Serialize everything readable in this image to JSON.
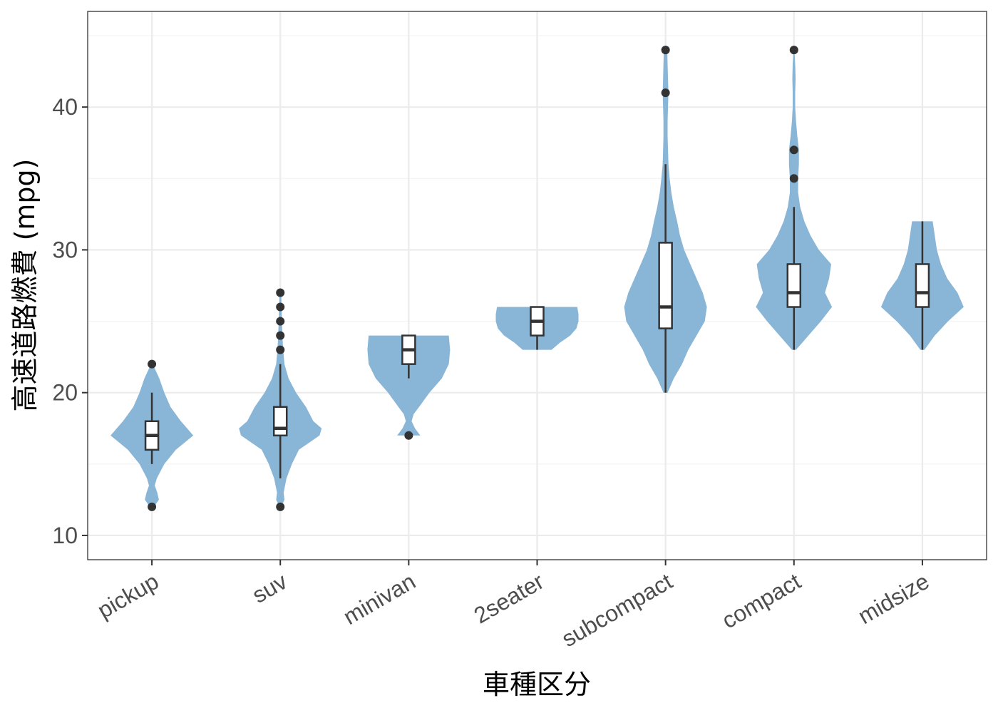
{
  "chart_data": {
    "type": "violin",
    "title": "",
    "xlabel": "車種区分",
    "ylabel": "高速道路燃費 (mpg)",
    "ylim": [
      8.3,
      46.7
    ],
    "yticks": [
      10,
      20,
      30,
      40
    ],
    "y_minor_ticks": [
      15,
      25,
      35,
      45
    ],
    "grid": true,
    "colors": {
      "violin_fill": "#89b5d6",
      "box_fill": "#ffffff",
      "box_stroke": "#333333",
      "outlier": "#333333",
      "grid_major": "#ebebeb",
      "grid_minor": "#f3f3f3",
      "panel_border": "#333333"
    },
    "categories": [
      "pickup",
      "suv",
      "minivan",
      "2seater",
      "subcompact",
      "compact",
      "midsize"
    ],
    "series": [
      {
        "category": "pickup",
        "box": {
          "q1": 16,
          "median": 17,
          "q3": 18,
          "whisker_low": 15,
          "whisker_high": 20
        },
        "outliers": [
          12,
          22
        ],
        "density_profile": [
          [
            12,
            0.05
          ],
          [
            12.5,
            0.17
          ],
          [
            13,
            0.13
          ],
          [
            13.5,
            0.07
          ],
          [
            14,
            0.12
          ],
          [
            15,
            0.3
          ],
          [
            16,
            0.58
          ],
          [
            17,
            1.0
          ],
          [
            18,
            0.7
          ],
          [
            19,
            0.45
          ],
          [
            20,
            0.3
          ],
          [
            21,
            0.18
          ],
          [
            22,
            0.02
          ]
        ]
      },
      {
        "category": "suv",
        "box": {
          "q1": 17,
          "median": 17.5,
          "q3": 19,
          "whisker_low": 14,
          "whisker_high": 22
        },
        "outliers": [
          12,
          23,
          24,
          25,
          26,
          27
        ],
        "density_profile": [
          [
            12,
            0.02
          ],
          [
            12.5,
            0.1
          ],
          [
            13,
            0.08
          ],
          [
            14,
            0.15
          ],
          [
            15,
            0.28
          ],
          [
            16,
            0.45
          ],
          [
            17,
            0.95
          ],
          [
            17.5,
            1.0
          ],
          [
            18,
            0.8
          ],
          [
            19,
            0.62
          ],
          [
            20,
            0.38
          ],
          [
            21,
            0.2
          ],
          [
            22,
            0.1
          ],
          [
            23,
            0.07
          ],
          [
            24,
            0.05
          ],
          [
            25,
            0.04
          ],
          [
            26,
            0.03
          ],
          [
            27,
            0.02
          ]
        ]
      },
      {
        "category": "minivan",
        "box": {
          "q1": 22,
          "median": 23,
          "q3": 24,
          "whisker_low": 21,
          "whisker_high": 24
        },
        "outliers": [
          17
        ],
        "density_profile": [
          [
            17,
            0.28
          ],
          [
            17.5,
            0.15
          ],
          [
            18,
            0.07
          ],
          [
            18.5,
            0.12
          ],
          [
            19,
            0.25
          ],
          [
            20,
            0.5
          ],
          [
            21,
            0.8
          ],
          [
            22,
            0.97
          ],
          [
            23,
            1.0
          ],
          [
            24,
            0.97
          ]
        ]
      },
      {
        "category": "2seater",
        "box": {
          "q1": 24,
          "median": 25,
          "q3": 26,
          "whisker_low": 23,
          "whisker_high": 26
        },
        "outliers": [],
        "density_profile": [
          [
            23,
            0.35
          ],
          [
            23.5,
            0.55
          ],
          [
            24,
            0.8
          ],
          [
            24.5,
            0.95
          ],
          [
            25,
            1.0
          ],
          [
            25.5,
            1.0
          ],
          [
            26,
            0.97
          ]
        ]
      },
      {
        "category": "subcompact",
        "box": {
          "q1": 24.5,
          "median": 26,
          "q3": 30.5,
          "whisker_low": 20,
          "whisker_high": 36
        },
        "outliers": [
          41,
          44
        ],
        "density_profile": [
          [
            20,
            0.05
          ],
          [
            21,
            0.2
          ],
          [
            22,
            0.4
          ],
          [
            23,
            0.55
          ],
          [
            24,
            0.75
          ],
          [
            25,
            0.95
          ],
          [
            26,
            1.0
          ],
          [
            27,
            0.9
          ],
          [
            28,
            0.75
          ],
          [
            29,
            0.6
          ],
          [
            30,
            0.45
          ],
          [
            31,
            0.35
          ],
          [
            32,
            0.28
          ],
          [
            33,
            0.2
          ],
          [
            34,
            0.14
          ],
          [
            35,
            0.1
          ],
          [
            36,
            0.07
          ],
          [
            37,
            0.06
          ],
          [
            38,
            0.05
          ],
          [
            39,
            0.05
          ],
          [
            40,
            0.06
          ],
          [
            41,
            0.07
          ],
          [
            42,
            0.06
          ],
          [
            43,
            0.05
          ],
          [
            44,
            0.04
          ]
        ]
      },
      {
        "category": "compact",
        "box": {
          "q1": 26,
          "median": 27,
          "q3": 29,
          "whisker_low": 23,
          "whisker_high": 33
        },
        "outliers": [
          35,
          37,
          44
        ],
        "density_profile": [
          [
            23,
            0.05
          ],
          [
            24,
            0.35
          ],
          [
            25,
            0.65
          ],
          [
            26,
            0.92
          ],
          [
            27,
            0.75
          ],
          [
            28,
            0.85
          ],
          [
            29,
            0.9
          ],
          [
            30,
            0.6
          ],
          [
            31,
            0.4
          ],
          [
            32,
            0.25
          ],
          [
            33,
            0.15
          ],
          [
            34,
            0.1
          ],
          [
            35,
            0.1
          ],
          [
            36,
            0.12
          ],
          [
            37,
            0.12
          ],
          [
            38,
            0.08
          ],
          [
            39,
            0.05
          ],
          [
            40,
            0.03
          ],
          [
            41,
            0.03
          ],
          [
            42,
            0.04
          ],
          [
            43,
            0.03
          ],
          [
            44,
            0.01
          ]
        ]
      },
      {
        "category": "midsize",
        "box": {
          "q1": 26,
          "median": 27,
          "q3": 29,
          "whisker_low": 23,
          "whisker_high": 32
        },
        "outliers": [],
        "density_profile": [
          [
            23,
            0.05
          ],
          [
            24,
            0.3
          ],
          [
            25,
            0.62
          ],
          [
            26,
            1.0
          ],
          [
            27,
            0.85
          ],
          [
            28,
            0.6
          ],
          [
            29,
            0.45
          ],
          [
            30,
            0.35
          ],
          [
            31,
            0.3
          ],
          [
            32,
            0.25
          ]
        ]
      }
    ]
  }
}
